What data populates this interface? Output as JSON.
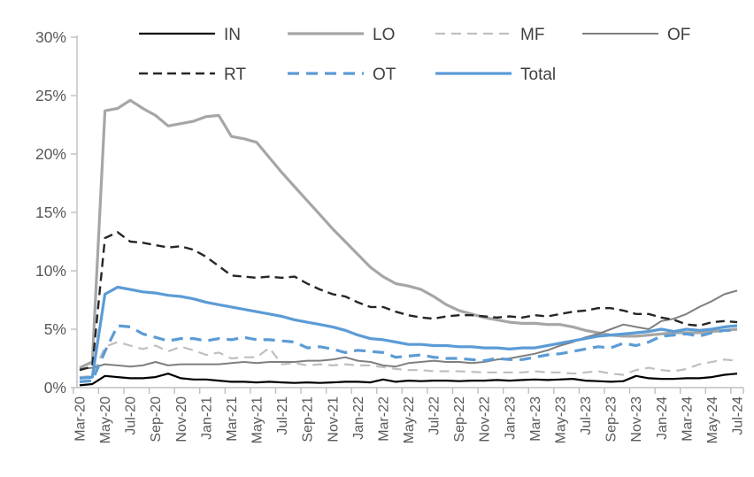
{
  "chart_data": {
    "type": "line",
    "title": "",
    "xlabel": "",
    "ylabel": "",
    "ylim": [
      0,
      30
    ],
    "grid": false,
    "legend_position": "top",
    "y_ticks": [
      {
        "value": 0,
        "label": "0%"
      },
      {
        "value": 5,
        "label": "5%"
      },
      {
        "value": 10,
        "label": "10%"
      },
      {
        "value": 15,
        "label": "15%"
      },
      {
        "value": 20,
        "label": "20%"
      },
      {
        "value": 25,
        "label": "25%"
      },
      {
        "value": 30,
        "label": "30%"
      }
    ],
    "x_label_every": 2,
    "categories": [
      "Mar-20",
      "Apr-20",
      "May-20",
      "Jun-20",
      "Jul-20",
      "Aug-20",
      "Sep-20",
      "Oct-20",
      "Nov-20",
      "Dec-20",
      "Jan-21",
      "Feb-21",
      "Mar-21",
      "Apr-21",
      "May-21",
      "Jun-21",
      "Jul-21",
      "Aug-21",
      "Sep-21",
      "Oct-21",
      "Nov-21",
      "Dec-21",
      "Jan-22",
      "Feb-22",
      "Mar-22",
      "Apr-22",
      "May-22",
      "Jun-22",
      "Jul-22",
      "Aug-22",
      "Sep-22",
      "Oct-22",
      "Nov-22",
      "Dec-22",
      "Jan-23",
      "Feb-23",
      "Mar-23",
      "Apr-23",
      "May-23",
      "Jun-23",
      "Jul-23",
      "Aug-23",
      "Sep-23",
      "Oct-23",
      "Nov-23",
      "Dec-23",
      "Jan-24",
      "Feb-24",
      "Mar-24",
      "Apr-24",
      "May-24",
      "Jun-24",
      "Jul-24"
    ],
    "series": [
      {
        "name": "IN",
        "color": "#000000",
        "dash": "solid",
        "width": 2.2,
        "values": [
          0.2,
          0.3,
          1.0,
          0.9,
          0.8,
          0.8,
          0.9,
          1.2,
          0.8,
          0.7,
          0.7,
          0.6,
          0.5,
          0.5,
          0.45,
          0.5,
          0.45,
          0.4,
          0.45,
          0.4,
          0.45,
          0.5,
          0.5,
          0.45,
          0.7,
          0.5,
          0.6,
          0.55,
          0.6,
          0.6,
          0.55,
          0.6,
          0.6,
          0.65,
          0.6,
          0.65,
          0.7,
          0.65,
          0.7,
          0.75,
          0.6,
          0.55,
          0.5,
          0.55,
          1.0,
          0.8,
          0.75,
          0.75,
          0.8,
          0.8,
          0.9,
          1.1,
          1.2
        ]
      },
      {
        "name": "LO",
        "color": "#A6A6A6",
        "dash": "solid",
        "width": 3.2,
        "values": [
          1.7,
          2.2,
          23.7,
          23.9,
          24.6,
          23.9,
          23.3,
          22.4,
          22.6,
          22.8,
          23.2,
          23.3,
          21.5,
          21.3,
          21.0,
          19.7,
          18.4,
          17.2,
          16.0,
          14.8,
          13.6,
          12.5,
          11.4,
          10.3,
          9.5,
          8.9,
          8.7,
          8.4,
          7.8,
          7.1,
          6.6,
          6.3,
          6.0,
          5.8,
          5.6,
          5.5,
          5.5,
          5.4,
          5.4,
          5.2,
          4.9,
          4.7,
          4.5,
          4.4,
          4.4,
          4.5,
          4.6,
          4.7,
          4.7,
          4.7,
          4.8,
          4.9,
          5.0
        ]
      },
      {
        "name": "MF",
        "color": "#BFBFBF",
        "dash": "11,7",
        "width": 2.2,
        "values": [
          0.9,
          1.0,
          3.5,
          3.9,
          3.6,
          3.3,
          3.6,
          3.1,
          3.5,
          3.2,
          2.8,
          3.0,
          2.5,
          2.6,
          2.6,
          3.4,
          2.0,
          2.1,
          1.9,
          2.0,
          1.9,
          2.0,
          1.9,
          1.9,
          1.75,
          1.6,
          1.5,
          1.5,
          1.4,
          1.4,
          1.4,
          1.35,
          1.3,
          1.3,
          1.3,
          1.3,
          1.4,
          1.3,
          1.3,
          1.2,
          1.3,
          1.4,
          1.2,
          1.1,
          1.5,
          1.7,
          1.5,
          1.4,
          1.6,
          2.0,
          2.2,
          2.4,
          2.3
        ]
      },
      {
        "name": "OF",
        "color": "#7F7F7F",
        "dash": "solid",
        "width": 2.0,
        "values": [
          1.6,
          1.7,
          2.0,
          1.9,
          1.8,
          1.9,
          2.2,
          1.9,
          2.0,
          2.0,
          2.0,
          2.0,
          2.1,
          2.2,
          2.1,
          2.2,
          2.2,
          2.2,
          2.3,
          2.3,
          2.4,
          2.6,
          2.3,
          2.2,
          1.9,
          1.8,
          2.1,
          2.2,
          2.3,
          2.2,
          2.2,
          2.1,
          2.2,
          2.4,
          2.5,
          2.7,
          2.9,
          3.2,
          3.6,
          3.9,
          4.3,
          4.6,
          5.0,
          5.4,
          5.2,
          5.0,
          5.7,
          5.9,
          6.3,
          6.9,
          7.4,
          8.0,
          8.3
        ]
      },
      {
        "name": "RT",
        "color": "#262626",
        "dash": "10,6",
        "width": 2.4,
        "values": [
          1.5,
          1.8,
          12.8,
          13.3,
          12.5,
          12.4,
          12.2,
          12.0,
          12.1,
          11.8,
          11.2,
          10.4,
          9.6,
          9.5,
          9.4,
          9.5,
          9.4,
          9.5,
          8.9,
          8.4,
          8.0,
          7.8,
          7.3,
          6.9,
          6.9,
          6.5,
          6.2,
          6.0,
          5.9,
          6.1,
          6.2,
          6.2,
          6.1,
          6.0,
          6.1,
          6.0,
          6.2,
          6.1,
          6.3,
          6.5,
          6.6,
          6.8,
          6.8,
          6.6,
          6.3,
          6.3,
          6.0,
          5.8,
          5.4,
          5.3,
          5.6,
          5.7,
          5.6
        ]
      },
      {
        "name": "OT",
        "color": "#5B9BD5",
        "dash": "13,8",
        "width": 3.2,
        "values": [
          0.5,
          0.6,
          3.1,
          5.3,
          5.2,
          4.6,
          4.3,
          4.0,
          4.2,
          4.2,
          4.0,
          4.2,
          4.1,
          4.3,
          4.1,
          4.1,
          4.0,
          3.9,
          3.4,
          3.5,
          3.3,
          3.0,
          3.2,
          3.1,
          3.0,
          2.6,
          2.7,
          2.8,
          2.6,
          2.5,
          2.5,
          2.4,
          2.3,
          2.5,
          2.4,
          2.4,
          2.6,
          2.8,
          2.9,
          3.1,
          3.3,
          3.5,
          3.4,
          3.8,
          3.6,
          3.9,
          4.4,
          4.5,
          4.6,
          4.4,
          4.7,
          4.9,
          4.9
        ]
      },
      {
        "name": "Total",
        "color": "#5B9BD5",
        "dash": "solid",
        "width": 3.2,
        "values": [
          0.8,
          0.9,
          8.0,
          8.6,
          8.4,
          8.2,
          8.1,
          7.9,
          7.8,
          7.6,
          7.3,
          7.1,
          6.9,
          6.7,
          6.5,
          6.3,
          6.1,
          5.8,
          5.6,
          5.4,
          5.2,
          4.9,
          4.5,
          4.2,
          4.1,
          3.9,
          3.7,
          3.7,
          3.6,
          3.6,
          3.5,
          3.5,
          3.4,
          3.4,
          3.3,
          3.4,
          3.4,
          3.6,
          3.8,
          4.0,
          4.2,
          4.4,
          4.5,
          4.6,
          4.7,
          4.8,
          5.0,
          4.8,
          5.0,
          4.9,
          5.0,
          5.2,
          5.3
        ]
      }
    ]
  },
  "style": {
    "axis_color": "#BFBFBF",
    "tick_label_color": "#595959",
    "legend_text_color": "#404040",
    "background": "#FFFFFF"
  }
}
